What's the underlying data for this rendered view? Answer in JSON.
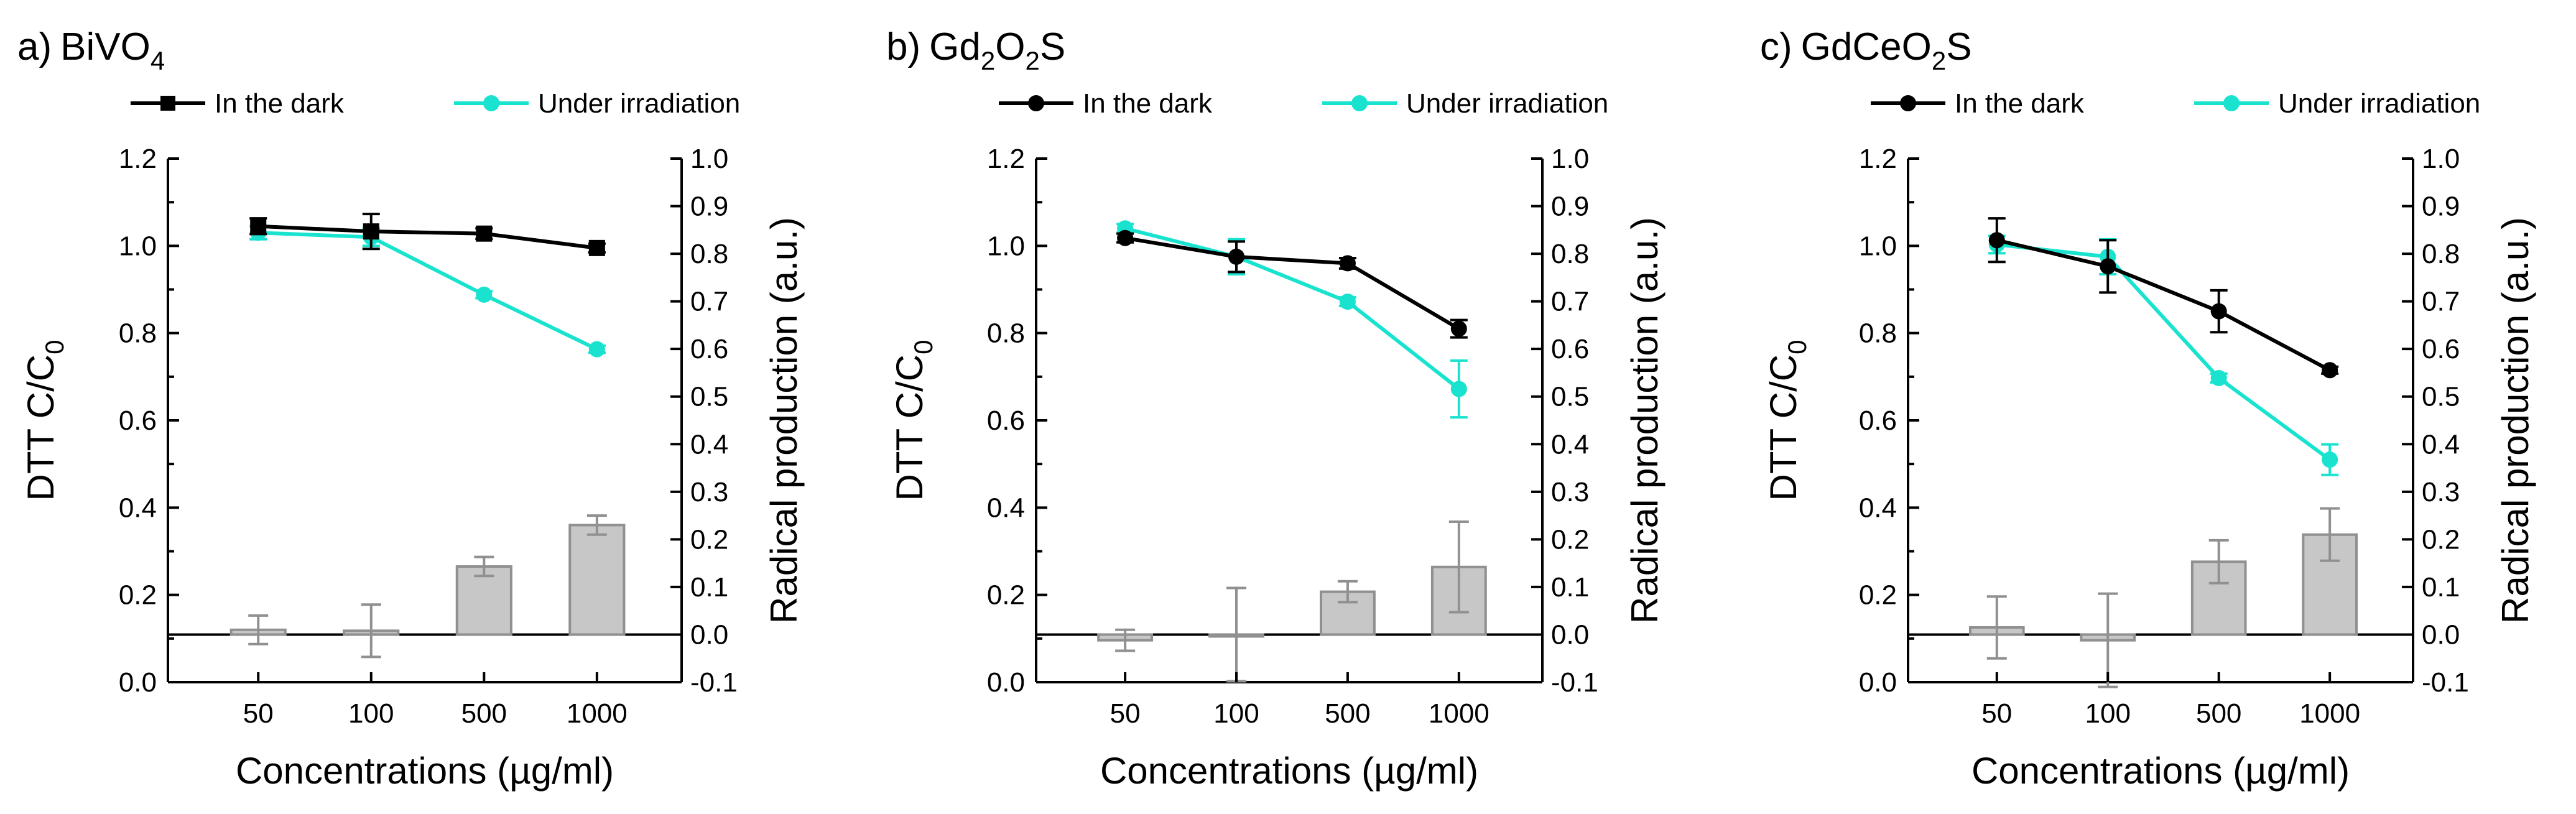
{
  "colors": {
    "dark": "#000000",
    "irradiation": "#19e3cf",
    "bar_fill": "#c7c7c7",
    "bar_edge": "#909090"
  },
  "chart_data": [
    {
      "type": "line+bar",
      "panel_label": "a)",
      "title": "BiVO",
      "title_sub": "4",
      "title_after": "",
      "xlabel": "Concentrations (µg/ml)",
      "ylabel_main": "DTT C/C",
      "ylabel_sub": "0",
      "y2label": "Radical production (a.u.)",
      "categories": [
        "50",
        "100",
        "500",
        "1000"
      ],
      "ylim": [
        0,
        1.2
      ],
      "yticks": [
        "0.0",
        "0.2",
        "0.4",
        "0.6",
        "0.8",
        "1.0",
        "1.2"
      ],
      "y2lim": [
        -0.1,
        1.0
      ],
      "y2ticks": [
        "-0.1",
        "0.0",
        "0.1",
        "0.2",
        "0.3",
        "0.4",
        "0.5",
        "0.6",
        "0.7",
        "0.8",
        "0.9",
        "1.0"
      ],
      "legend": [
        "In the dark",
        "Under irradiation"
      ],
      "series": [
        {
          "name": "In the dark",
          "marker": "square",
          "values": [
            1.045,
            1.033,
            1.028,
            0.995
          ],
          "errors": [
            0.018,
            0.04,
            0.012,
            0.01
          ]
        },
        {
          "name": "Under irradiation",
          "marker": "circle",
          "values": [
            1.03,
            1.02,
            0.888,
            0.763
          ],
          "errors": [
            0.015,
            0.02,
            0.008,
            0.008
          ]
        }
      ],
      "bars": {
        "name": "Radical production",
        "values": [
          0.01,
          0.008,
          0.143,
          0.23
        ],
        "errors": [
          0.03,
          0.055,
          0.02,
          0.02
        ]
      }
    },
    {
      "type": "line+bar",
      "panel_label": "b)",
      "title": "Gd",
      "title_sub": "2",
      "title_after": "O",
      "title_sub2": "2",
      "title_tail": "S",
      "xlabel": "Concentrations (µg/ml)",
      "ylabel_main": "DTT C/C",
      "ylabel_sub": "0",
      "y2label": "Radical production (a.u.)",
      "categories": [
        "50",
        "100",
        "500",
        "1000"
      ],
      "ylim": [
        0,
        1.2
      ],
      "yticks": [
        "0.0",
        "0.2",
        "0.4",
        "0.6",
        "0.8",
        "1.0",
        "1.2"
      ],
      "y2lim": [
        -0.1,
        1.0
      ],
      "y2ticks": [
        "-0.1",
        "0.0",
        "0.1",
        "0.2",
        "0.3",
        "0.4",
        "0.5",
        "0.6",
        "0.7",
        "0.8",
        "0.9",
        "1.0"
      ],
      "legend": [
        "In the dark",
        "Under irradiation"
      ],
      "series": [
        {
          "name": "In the dark",
          "marker": "circle",
          "values": [
            1.018,
            0.975,
            0.96,
            0.81
          ],
          "errors": [
            0.01,
            0.035,
            0.012,
            0.02
          ]
        },
        {
          "name": "Under irradiation",
          "marker": "circle",
          "values": [
            1.04,
            0.975,
            0.872,
            0.672
          ],
          "errors": [
            0.01,
            0.04,
            0.01,
            0.065
          ]
        }
      ],
      "bars": {
        "name": "Radical production",
        "values": [
          -0.012,
          0.0,
          0.09,
          0.142
        ],
        "errors": [
          0.022,
          0.098,
          0.022,
          0.095
        ]
      }
    },
    {
      "type": "line+bar",
      "panel_label": "c)",
      "title": "GdCeO",
      "title_sub": "2",
      "title_after": "S",
      "xlabel": "Concentrations (µg/ml)",
      "ylabel_main": "DTT C/C",
      "ylabel_sub": "0",
      "y2label": "Radical production (a.u.)",
      "categories": [
        "50",
        "100",
        "500",
        "1000"
      ],
      "ylim": [
        0,
        1.2
      ],
      "yticks": [
        "0.0",
        "0.2",
        "0.4",
        "0.6",
        "0.8",
        "1.0",
        "1.2"
      ],
      "y2lim": [
        -0.1,
        1.0
      ],
      "y2ticks": [
        "-0.1",
        "0.0",
        "0.1",
        "0.2",
        "0.3",
        "0.4",
        "0.5",
        "0.6",
        "0.7",
        "0.8",
        "0.9",
        "1.0"
      ],
      "legend": [
        "In the dark",
        "Under irradiation"
      ],
      "series": [
        {
          "name": "In the dark",
          "marker": "circle",
          "values": [
            1.013,
            0.953,
            0.85,
            0.715
          ],
          "errors": [
            0.05,
            0.06,
            0.048,
            0.008
          ]
        },
        {
          "name": "Under irradiation",
          "marker": "circle",
          "values": [
            1.003,
            0.975,
            0.697,
            0.51
          ],
          "errors": [
            0.02,
            0.04,
            0.01,
            0.035
          ]
        }
      ],
      "bars": {
        "name": "Radical production",
        "values": [
          0.015,
          -0.012,
          0.153,
          0.21
        ],
        "errors": [
          0.065,
          0.098,
          0.045,
          0.055
        ]
      }
    }
  ]
}
